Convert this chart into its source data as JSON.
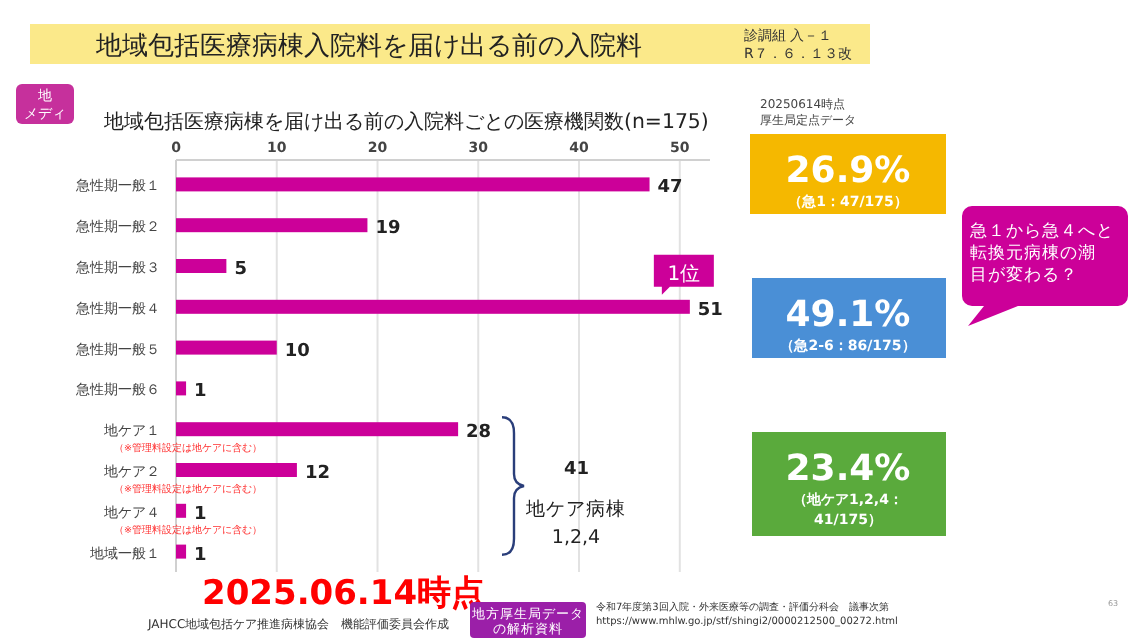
{
  "chart_data": {
    "type": "bar",
    "orientation": "horizontal",
    "title": "地域包括医療病棟入院料を届け出る前の入院料",
    "subtitle": "地域包括医療病棟を届け出る前の入院料ごとの医療機関数(n=175)",
    "categories": [
      "急性期一般１",
      "急性期一般２",
      "急性期一般３",
      "急性期一般４",
      "急性期一般５",
      "急性期一般６",
      "地ケア１",
      "地ケア２",
      "地ケア４",
      "地域一般１"
    ],
    "values": [
      47,
      19,
      5,
      51,
      10,
      1,
      28,
      12,
      1,
      1
    ],
    "color": "#cc0099",
    "xlim": [
      0,
      53
    ],
    "xticks": [
      0,
      10,
      20,
      30,
      40,
      50
    ],
    "grid": "x",
    "data_labels": true,
    "annotations": [
      "診調組 入－１",
      "R７．６．１３改",
      "地",
      "メディ",
      "20250614時点",
      "厚生局定点データ",
      "26.9%",
      "（急1：47/175）",
      "49.1%",
      "（急2-6：86/175）",
      "23.4%",
      "（地ケア1,2,4：",
      "41/175）",
      "急１から急４へと",
      "転換元病棟の潮",
      "目が変わる？",
      {
        "text": "1位",
        "x": 51,
        "y": "急性期一般４"
      },
      "（※管理料設定は地ケアに含む）",
      "（※管理料設定は地ケアに含む）",
      "（※管理料設定は地ケアに含む）",
      "41",
      "地ケア病棟",
      "1,2,4",
      "2025.06.14時点",
      "JAHCC地域包括ケア推進病棟協会　機能評価委員会作成",
      "地方厚生局データ",
      "の解析資料",
      "令和7年度第3回入院・外来医療等の調査・評価分科会　議事次第",
      "https://www.mhlw.go.jp/stf/shingi2/0000212500_00272.html",
      "63"
    ]
  }
}
